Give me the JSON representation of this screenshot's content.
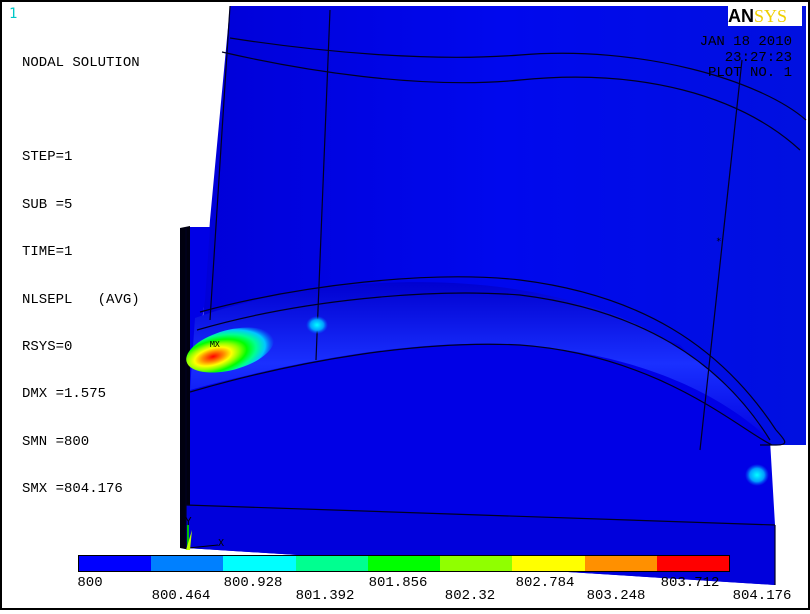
{
  "window_number": "1",
  "logo": {
    "left": "AN",
    "right": "SYS"
  },
  "info_lines": [
    "NODAL SOLUTION",
    "",
    "STEP=1",
    "SUB =5",
    "TIME=1",
    "NLSEPL   (AVG)",
    "RSYS=0",
    "DMX =1.575",
    "SMN =800",
    "SMX =804.176"
  ],
  "stamp": {
    "date": "JAN 18 2010",
    "time": "23:27:23",
    "plot": "PLOT NO.   1"
  },
  "marker": "MX",
  "triad": {
    "y": "Y",
    "x": "X"
  },
  "legend": {
    "colors": [
      "#0000ff",
      "#0080ff",
      "#00ffff",
      "#00ff90",
      "#00ff00",
      "#90ff00",
      "#ffff00",
      "#ff9000",
      "#ff0000"
    ],
    "labels_top": [
      "800",
      "800.928",
      "801.856",
      "802.784",
      "803.712"
    ],
    "labels_bottom": [
      "800.464",
      "801.392",
      "802.32",
      "803.248",
      "804.176"
    ]
  },
  "model_colors": {
    "base": "#0000e8",
    "dark": "#0000c0",
    "light": "#1a2cff",
    "edge": "#000030"
  }
}
